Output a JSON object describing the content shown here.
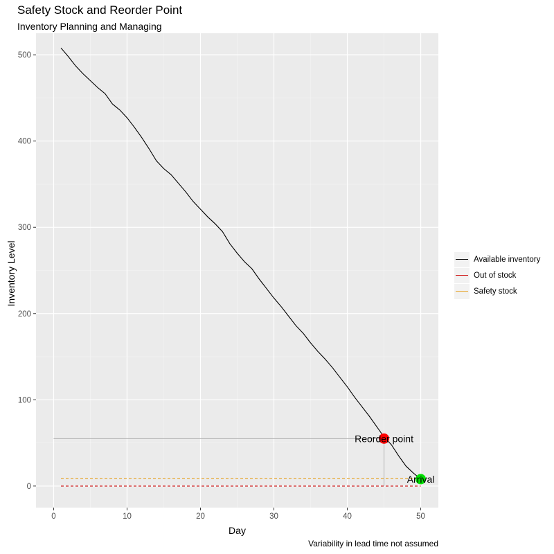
{
  "chart_data": {
    "type": "line",
    "title": "Safety Stock and Reorder Point",
    "subtitle": "Inventory Planning and Managing",
    "caption": "Variability in lead time not assumed",
    "xlabel": "Day",
    "ylabel": "Inventory Level",
    "xlim": [
      -2.4,
      52.4
    ],
    "ylim": [
      -25,
      525
    ],
    "x_ticks": [
      0,
      10,
      20,
      30,
      40,
      50
    ],
    "y_ticks": [
      0,
      100,
      200,
      300,
      400,
      500
    ],
    "grid": true,
    "legend_position": "right",
    "series": [
      {
        "name": "Available inventory",
        "color": "#000000",
        "style": "solid",
        "x": [
          1,
          2,
          3,
          4,
          5,
          6,
          7,
          8,
          9,
          10,
          11,
          12,
          13,
          14,
          15,
          16,
          17,
          18,
          19,
          20,
          21,
          22,
          23,
          24,
          25,
          26,
          27,
          28,
          29,
          30,
          31,
          32,
          33,
          34,
          35,
          36,
          37,
          38,
          39,
          40,
          41,
          42,
          43,
          44,
          45,
          46,
          47,
          48,
          49,
          50
        ],
        "values": [
          508,
          498,
          487,
          478,
          470,
          462,
          455,
          443,
          436,
          427,
          416,
          404,
          391,
          377,
          368,
          361,
          351,
          341,
          330,
          321,
          312,
          304,
          295,
          281,
          270,
          260,
          252,
          240,
          229,
          218,
          208,
          197,
          186,
          177,
          166,
          156,
          147,
          137,
          126,
          115,
          103,
          92,
          81,
          69,
          57,
          48,
          35,
          23,
          15,
          8
        ]
      },
      {
        "name": "Out of stock",
        "color": "#cc0000",
        "style": "dashed",
        "x": [
          1,
          50
        ],
        "values": [
          0,
          0
        ]
      },
      {
        "name": "Safety stock",
        "color": "#e6a020",
        "style": "dashed",
        "x": [
          1,
          50
        ],
        "values": [
          9,
          9
        ]
      }
    ],
    "points": [
      {
        "label": "Reorder point",
        "x": 45,
        "y": 55,
        "color": "#ff0000"
      },
      {
        "label": "Arrival",
        "x": 50,
        "y": 8,
        "color": "#00e000"
      }
    ],
    "guides": {
      "color": "#b3b3b3",
      "horizontal": {
        "x1": 0,
        "x2": 45,
        "y": 55
      },
      "vertical": {
        "x": 45,
        "y1": 0,
        "y2": 55
      }
    }
  }
}
